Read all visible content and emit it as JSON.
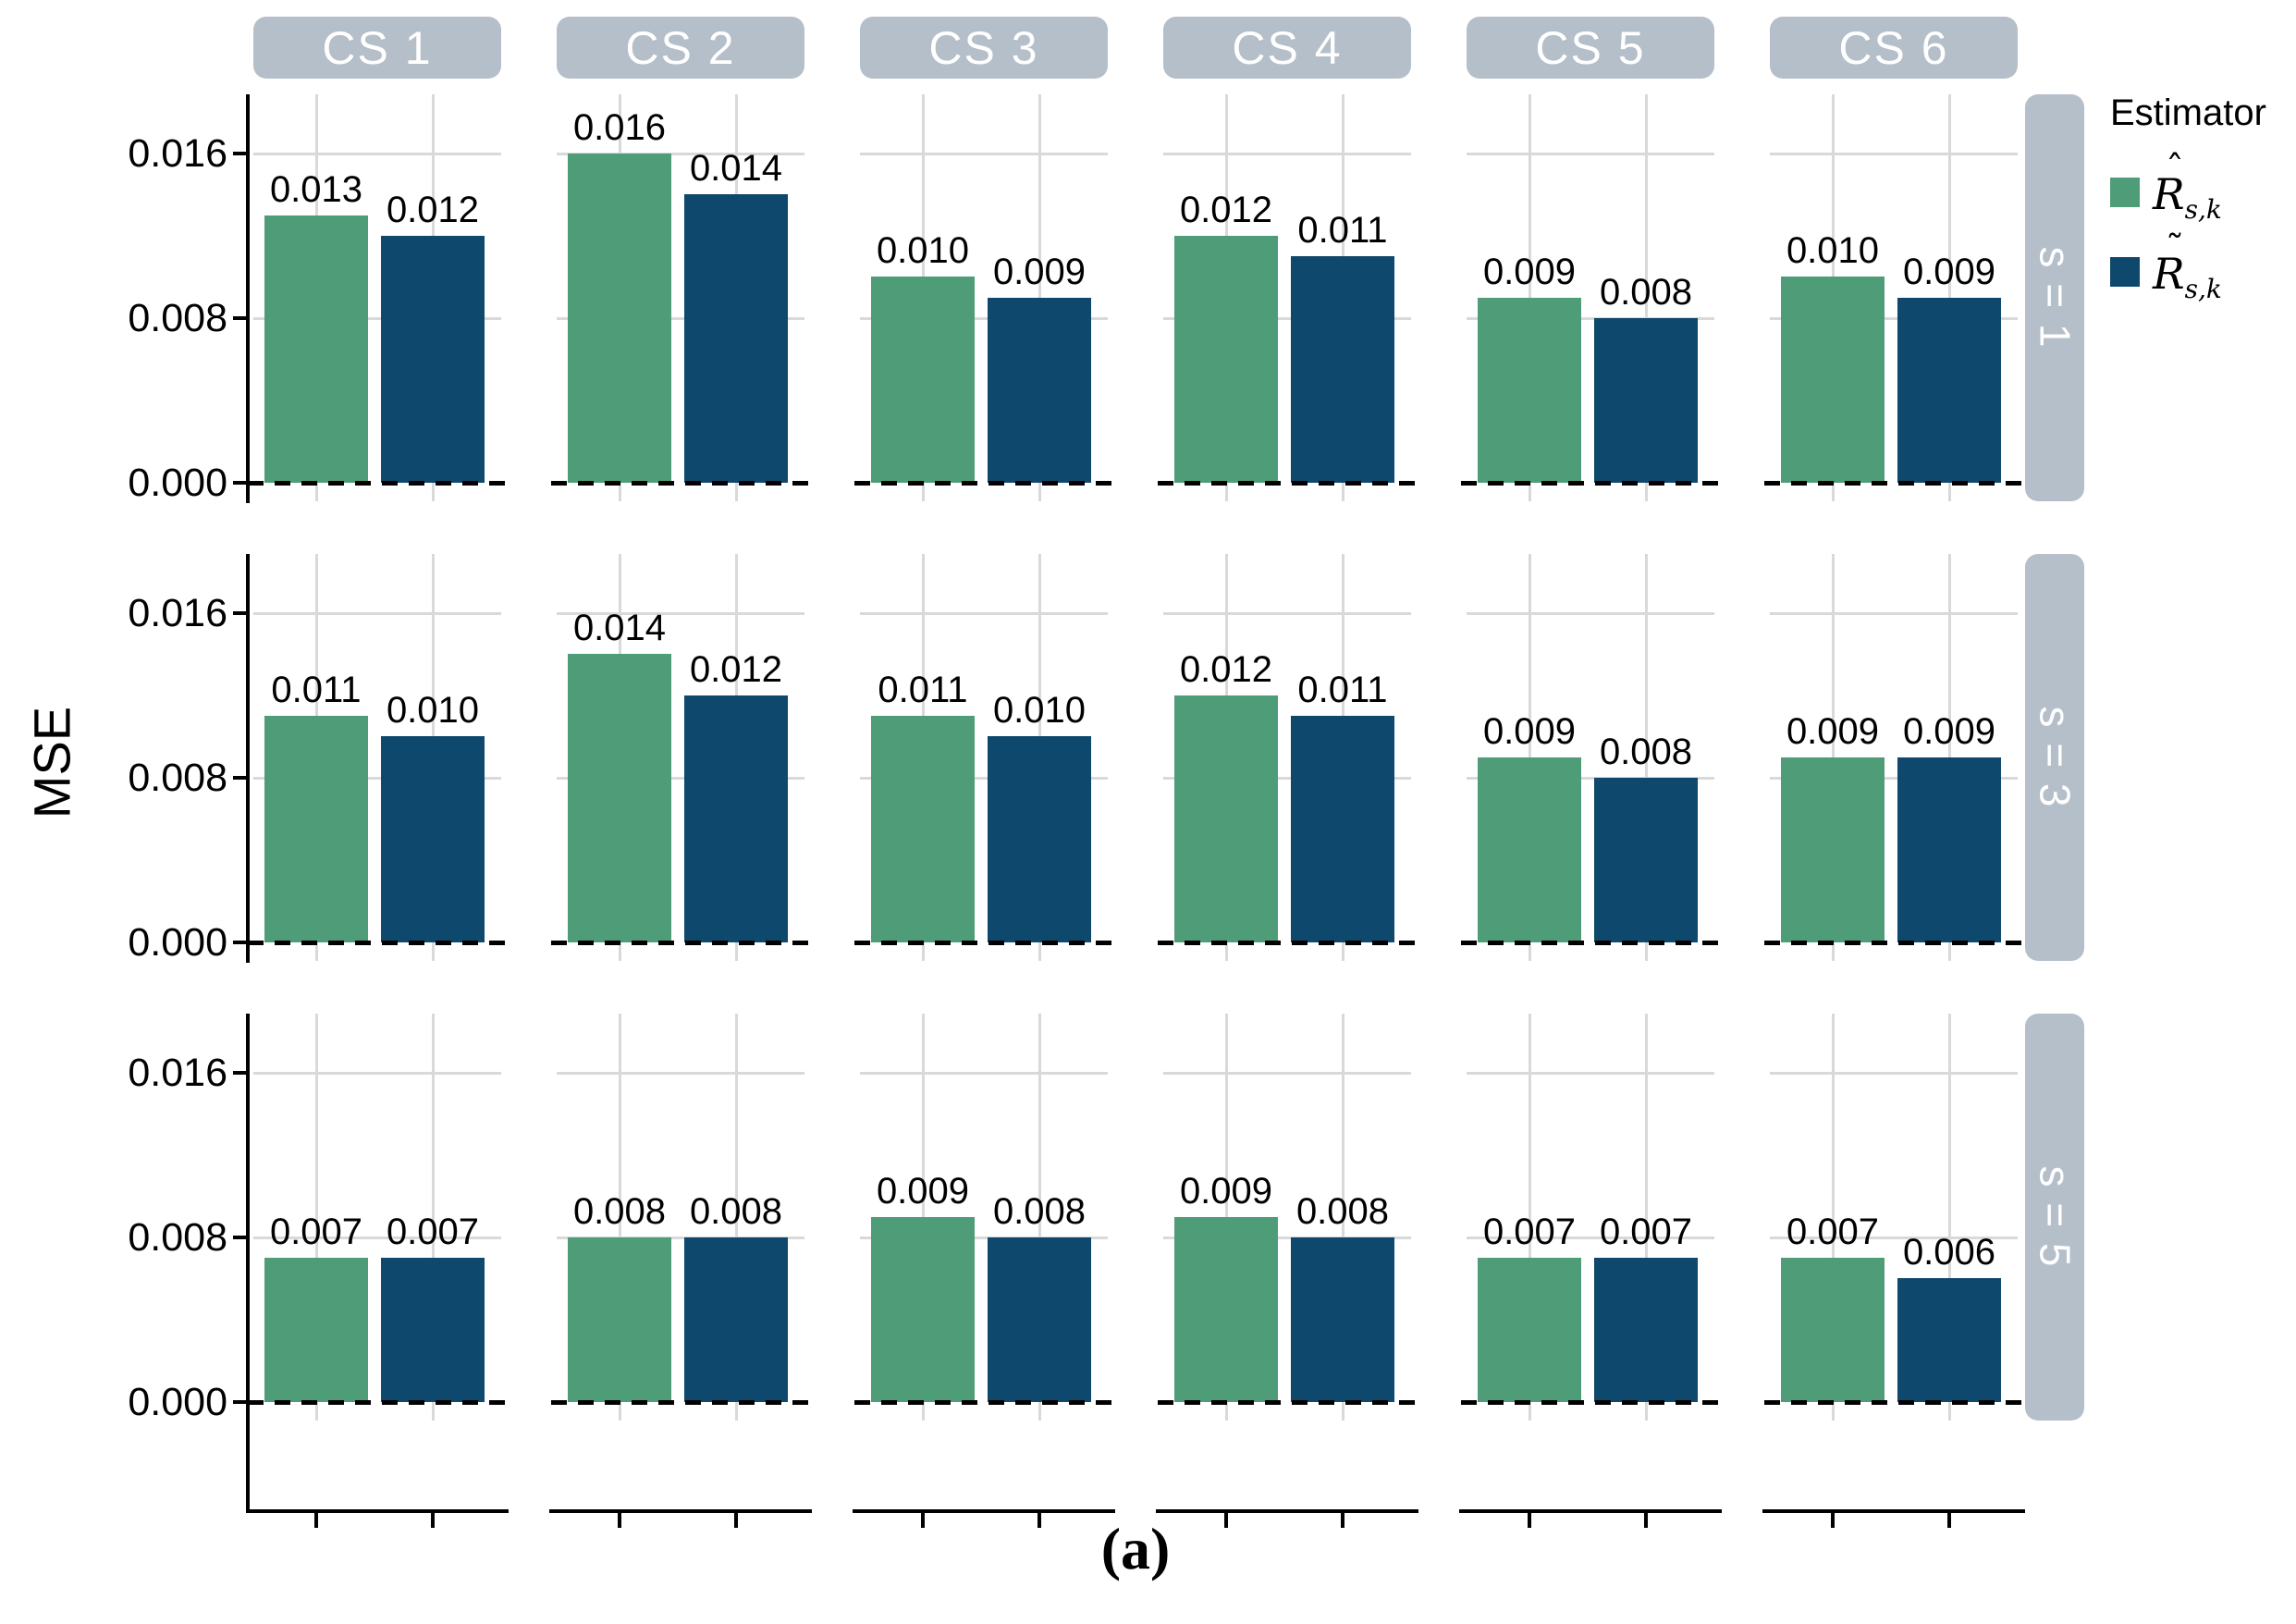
{
  "chart_data": {
    "type": "bar",
    "title": "",
    "ylabel": "MSE",
    "caption": "(a)",
    "facet_columns": [
      "CS 1",
      "CS 2",
      "CS 3",
      "CS 4",
      "CS 5",
      "CS 6"
    ],
    "facet_rows": [
      "s = 1",
      "s = 3",
      "s = 5"
    ],
    "yticks_top_to_bottom": [
      "0.016",
      "0.008",
      "0.000"
    ],
    "ylim": [
      -0.0009,
      0.0189
    ],
    "grid": "on",
    "zero_reference_line": "dashed",
    "series": [
      {
        "name": "R-hat s,k",
        "color": "#4f9d78"
      },
      {
        "name": "R-tilde s,k",
        "color": "#0e486c"
      }
    ],
    "values_by_row": [
      {
        "facet_row": "s = 1",
        "pairs": [
          [
            0.013,
            0.012
          ],
          [
            0.016,
            0.014
          ],
          [
            0.01,
            0.009
          ],
          [
            0.012,
            0.011
          ],
          [
            0.009,
            0.008
          ],
          [
            0.01,
            0.009
          ]
        ]
      },
      {
        "facet_row": "s = 3",
        "pairs": [
          [
            0.011,
            0.01
          ],
          [
            0.014,
            0.012
          ],
          [
            0.011,
            0.01
          ],
          [
            0.012,
            0.011
          ],
          [
            0.009,
            0.008
          ],
          [
            0.009,
            0.009
          ]
        ]
      },
      {
        "facet_row": "s = 5",
        "pairs": [
          [
            0.007,
            0.007
          ],
          [
            0.008,
            0.008
          ],
          [
            0.009,
            0.008
          ],
          [
            0.009,
            0.008
          ],
          [
            0.007,
            0.007
          ],
          [
            0.007,
            0.006
          ]
        ]
      }
    ],
    "legend_position": "right"
  },
  "legend": {
    "title": "Estimator",
    "items": [
      {
        "accent": "ˆ",
        "base": "R",
        "subscript": "s,k",
        "color": "#4f9d78"
      },
      {
        "accent": "˜",
        "base": "R",
        "subscript": "s,k",
        "color": "#0e486c"
      }
    ]
  },
  "colors": {
    "bar_green": "#4f9d78",
    "bar_navy": "#0e486c",
    "facet_strip": "#b5bfc9",
    "gridline": "#d9d9d9",
    "axis": "#000000"
  }
}
